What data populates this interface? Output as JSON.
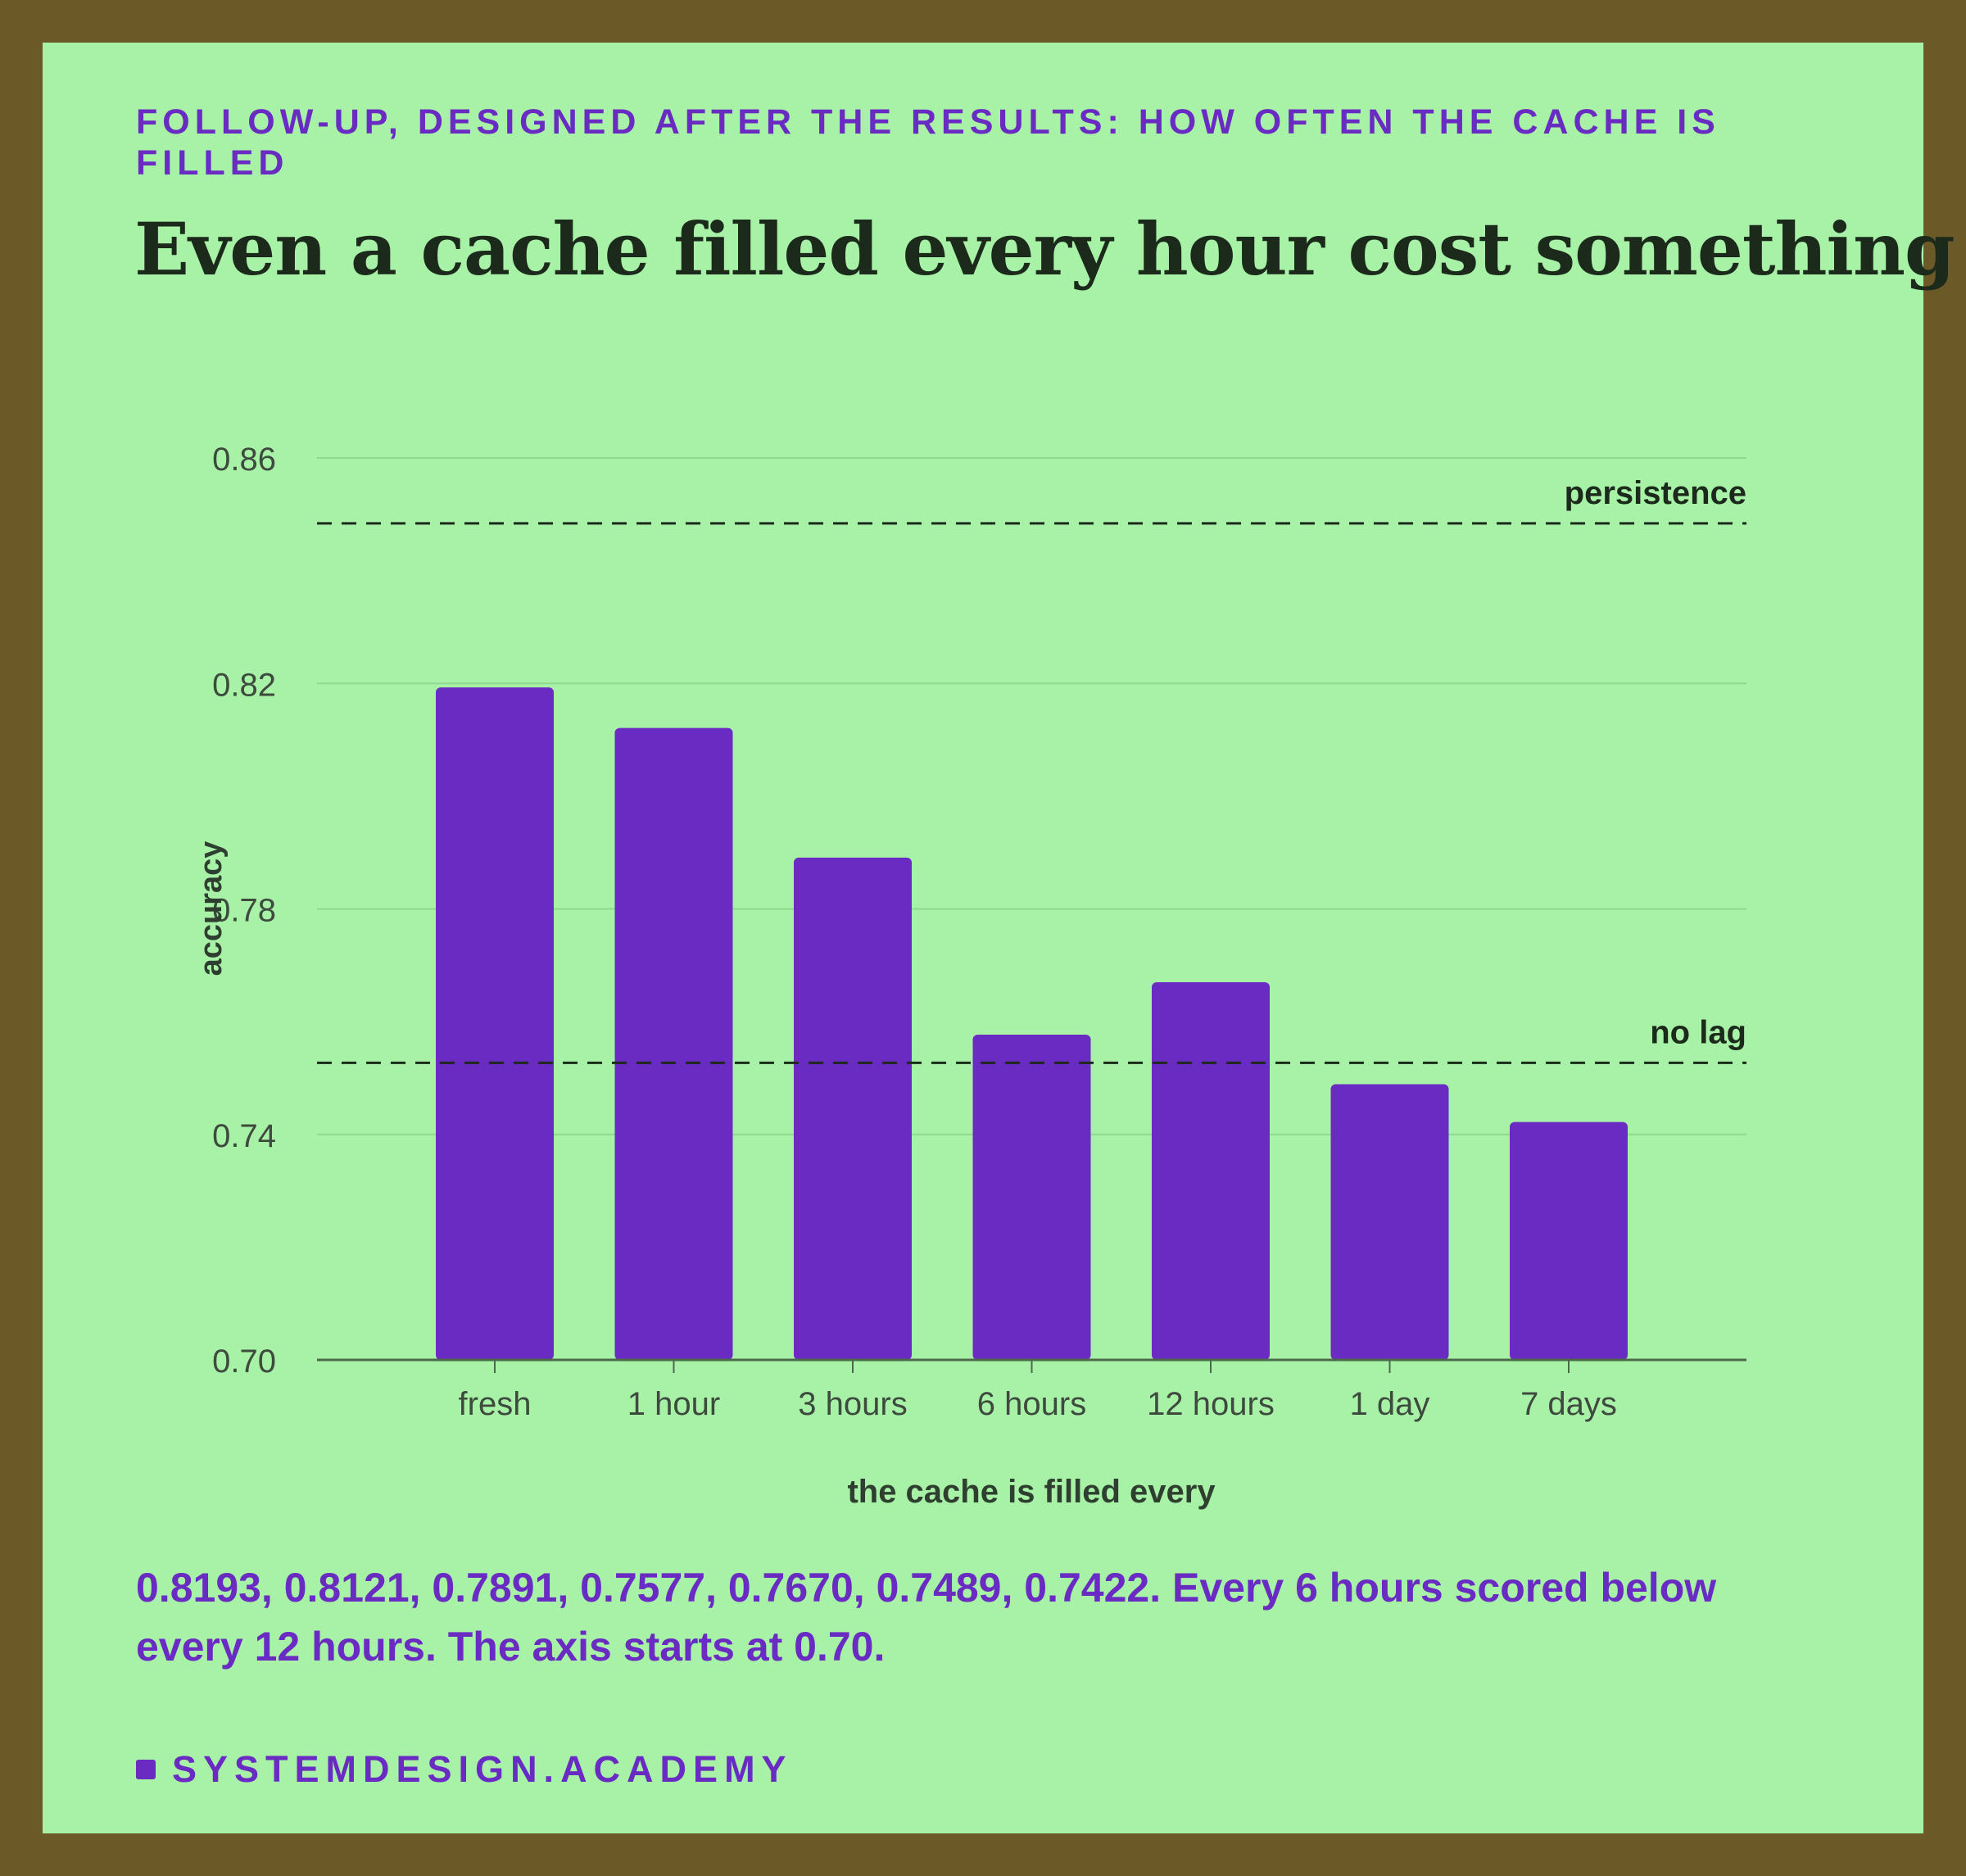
{
  "header": {
    "kicker": "FOLLOW-UP, DESIGNED AFTER THE RESULTS: HOW OFTEN THE CACHE IS FILLED",
    "title": "Even a cache filled every hour cost something"
  },
  "chart_data": {
    "type": "bar",
    "categories": [
      "fresh",
      "1 hour",
      "3 hours",
      "6 hours",
      "12 hours",
      "1 day",
      "7 days"
    ],
    "values": [
      0.8193,
      0.8121,
      0.7891,
      0.7577,
      0.767,
      0.7489,
      0.7422
    ],
    "xlabel": "the cache is filled every",
    "ylabel": "accuracy",
    "ylim": [
      0.7,
      0.86
    ],
    "yticks": [
      "0.70",
      "0.74",
      "0.78",
      "0.82",
      "0.86"
    ],
    "grid": true,
    "reference_lines": [
      {
        "label": "persistence",
        "value": 0.8484
      },
      {
        "label": "no lag",
        "value": 0.7527
      }
    ],
    "colors": {
      "bar": "#6a2bc2",
      "grid": "#8fd88f",
      "axis": "#4a6a4a",
      "text": "#3d4a3d",
      "reference": "#1c2a1c"
    }
  },
  "note": "0.8193, 0.8121, 0.7891, 0.7577, 0.7670, 0.7489, 0.7422. Every 6 hours scored below every 12 hours. The axis starts at 0.70.",
  "footer": {
    "brand": "SYSTEMDESIGN.ACADEMY"
  }
}
